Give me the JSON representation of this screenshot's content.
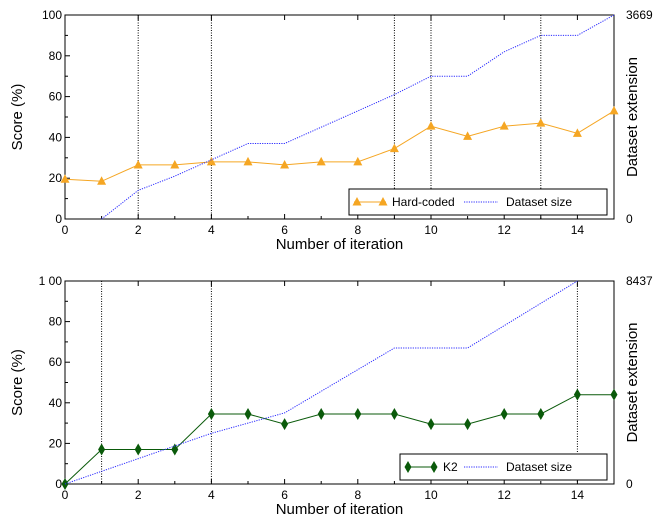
{
  "chart_data": [
    {
      "type": "line",
      "xlabel": "Number of iteration",
      "ylabel": "Score (%)",
      "y2label": "Dataset extension",
      "xlim": [
        0,
        15
      ],
      "ylim": [
        0,
        100
      ],
      "y2lim": [
        0,
        3669
      ],
      "x_ticks": [
        "0",
        "2",
        "4",
        "6",
        "8",
        "10",
        "12",
        "14"
      ],
      "y_ticks": [
        "0",
        "20",
        "40",
        "60",
        "80",
        "100"
      ],
      "y2_ticks": [
        "0",
        "3669"
      ],
      "grid": false,
      "vlines": [
        2,
        4,
        9,
        10,
        13
      ],
      "legend_position": "bottom-right",
      "colors": {
        "score": "#f5a623",
        "dataset": "#2b2bff",
        "vline": "#000000"
      },
      "series": [
        {
          "name": "Hard-coded",
          "marker": "triangle",
          "x": [
            0,
            1,
            2,
            3,
            4,
            5,
            6,
            7,
            8,
            9,
            10,
            11,
            12,
            13,
            14,
            15
          ],
          "values": [
            19.5,
            18.5,
            26.5,
            26.5,
            28,
            28,
            26.5,
            28,
            28,
            34.5,
            45.5,
            40.5,
            45.5,
            47,
            42,
            53
          ]
        },
        {
          "name": "Dataset size",
          "axis": "right",
          "dotted": true,
          "x": [
            1,
            2,
            3,
            4,
            5,
            6,
            7,
            8,
            9,
            10,
            11,
            12,
            13,
            14,
            15
          ],
          "values": [
            0,
            514,
            771,
            1064,
            1358,
            1358,
            1651,
            1945,
            2238,
            2568,
            2568,
            3008,
            3302,
            3302,
            3669
          ]
        }
      ]
    },
    {
      "type": "line",
      "xlabel": "Number of iteration",
      "ylabel": "Score (%)",
      "y2label": "Dataset extension",
      "xlim": [
        0,
        15
      ],
      "ylim": [
        0,
        100
      ],
      "y2lim": [
        0,
        8437
      ],
      "x_ticks": [
        "0",
        "2",
        "4",
        "6",
        "8",
        "10",
        "12",
        "14"
      ],
      "y_ticks": [
        "0",
        "20",
        "40",
        "60",
        "80",
        "1 00"
      ],
      "y2_ticks": [
        "0",
        "8437"
      ],
      "grid": false,
      "vlines": [
        1,
        4,
        14
      ],
      "legend_position": "bottom-right",
      "colors": {
        "score": "#0a5a0a",
        "dataset": "#2b2bff",
        "vline": "#000000"
      },
      "series": [
        {
          "name": "K2",
          "marker": "diamond",
          "x": [
            0,
            1,
            2,
            3,
            4,
            5,
            6,
            7,
            8,
            9,
            10,
            11,
            12,
            13,
            14,
            15
          ],
          "values": [
            0,
            17,
            17,
            17,
            34.5,
            34.5,
            29.5,
            34.5,
            34.5,
            34.5,
            29.5,
            29.5,
            34.5,
            34.5,
            44,
            44
          ]
        },
        {
          "name": "Dataset size",
          "axis": "right",
          "dotted": true,
          "x": [
            0,
            4,
            6,
            9,
            11,
            14
          ],
          "values": [
            0,
            2109,
            2953,
            5653,
            5653,
            8437
          ]
        }
      ]
    }
  ]
}
